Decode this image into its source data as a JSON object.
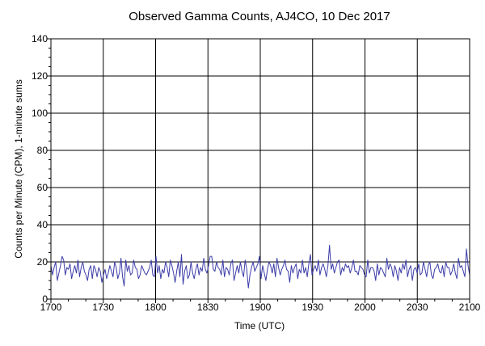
{
  "chart_data": {
    "type": "line",
    "title": "Observed Gamma Counts, AJ4CO, 10 Dec 2017",
    "xlabel": "Time (UTC)",
    "ylabel": "Counts per Minute (CPM), 1-minute sums",
    "xlim": [
      1700,
      2100
    ],
    "ylim": [
      0,
      140
    ],
    "x_ticks": [
      "1700",
      "1730",
      "1800",
      "1830",
      "1900",
      "1930",
      "2000",
      "2030",
      "2100"
    ],
    "y_ticks": [
      0,
      20,
      40,
      60,
      80,
      100,
      120,
      140
    ],
    "grid": true,
    "line_color": "#3c3ca8",
    "series": [
      {
        "values": [
          18,
          13,
          17,
          20,
          10,
          14,
          18,
          23,
          21,
          13,
          17,
          16,
          19,
          11,
          15,
          18,
          14,
          21,
          12,
          17,
          20,
          15,
          13,
          10,
          16,
          18,
          11,
          18,
          16,
          12,
          17,
          15,
          9,
          13,
          16,
          11,
          14,
          18,
          15,
          12,
          20,
          17,
          11,
          14,
          22,
          12,
          7,
          21,
          15,
          18,
          13,
          14,
          21,
          17,
          16,
          11,
          13,
          18,
          16,
          14,
          13,
          15,
          17,
          21,
          13,
          12,
          23,
          14,
          18,
          11,
          16,
          14,
          20,
          17,
          12,
          21,
          18,
          14,
          9,
          15,
          20,
          12,
          24,
          8,
          15,
          18,
          11,
          13,
          20,
          14,
          11,
          16,
          19,
          13,
          17,
          15,
          22,
          16,
          14,
          18,
          23,
          23,
          16,
          15,
          20,
          17,
          16,
          13,
          21,
          12,
          17,
          16,
          13,
          19,
          21,
          10,
          14,
          18,
          14,
          20,
          15,
          12,
          21,
          16,
          6,
          13,
          17,
          20,
          15,
          17,
          19,
          23,
          11,
          18,
          14,
          10,
          16,
          20,
          18,
          14,
          19,
          12,
          22,
          17,
          13,
          16,
          18,
          21,
          16,
          15,
          9,
          18,
          14,
          17,
          19,
          11,
          16,
          14,
          21,
          14,
          17,
          12,
          19,
          24,
          13,
          16,
          18,
          15,
          21,
          13,
          17,
          19,
          16,
          12,
          18,
          29,
          16,
          19,
          14,
          17,
          20,
          21,
          13,
          17,
          15,
          19,
          17,
          18,
          14,
          17,
          21,
          15,
          15,
          13,
          18,
          17,
          16,
          13,
          12,
          21,
          14,
          17,
          17,
          15,
          10,
          19,
          13,
          17,
          16,
          14,
          12,
          22,
          16,
          19,
          17,
          12,
          18,
          15,
          10,
          17,
          14,
          19,
          16,
          21,
          12,
          16,
          18,
          10,
          16,
          17,
          14,
          19,
          13,
          14,
          20,
          16,
          12,
          18,
          20,
          13,
          11,
          16,
          17,
          19,
          15,
          14,
          18,
          12,
          20,
          17,
          17,
          13,
          15,
          19,
          14,
          11,
          22,
          17,
          18,
          15,
          12,
          27,
          18,
          13
        ]
      }
    ]
  }
}
